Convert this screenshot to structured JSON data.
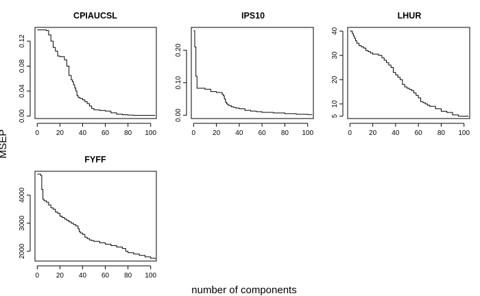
{
  "figure": {
    "ylabel": "MSEP",
    "xlabel": "number of components"
  },
  "chart_data": [
    {
      "type": "line",
      "title": "CPIAUCSL",
      "xlabel": "",
      "ylabel": "",
      "xlim": [
        -2,
        105
      ],
      "ylim": [
        -0.004,
        0.142
      ],
      "xticks": [
        "0",
        "20",
        "40",
        "60",
        "80",
        "100"
      ],
      "xtick_values": [
        0,
        20,
        40,
        60,
        80,
        100
      ],
      "yticks": [
        "0.00",
        "0.04",
        "0.08",
        "0.12"
      ],
      "ytick_values": [
        0,
        0.04,
        0.08,
        0.12
      ],
      "step": true,
      "x": [
        0,
        5,
        8,
        10,
        12,
        14,
        16,
        18,
        20,
        22,
        24,
        26,
        28,
        30,
        31,
        32,
        33,
        34,
        35,
        36,
        37,
        38,
        40,
        42,
        44,
        46,
        48,
        50,
        55,
        60,
        65,
        70,
        75,
        80,
        85,
        90,
        95,
        100,
        104
      ],
      "y": [
        0.138,
        0.138,
        0.137,
        0.13,
        0.12,
        0.11,
        0.104,
        0.096,
        0.095,
        0.095,
        0.09,
        0.08,
        0.065,
        0.058,
        0.055,
        0.05,
        0.045,
        0.04,
        0.033,
        0.03,
        0.029,
        0.028,
        0.026,
        0.023,
        0.02,
        0.016,
        0.012,
        0.01,
        0.009,
        0.008,
        0.005,
        0.003,
        0.002,
        0.0015,
        0.001,
        0.001,
        0.001,
        0.001,
        0.001
      ]
    },
    {
      "type": "line",
      "title": "IPS10",
      "xlabel": "",
      "ylabel": "",
      "xlim": [
        -2,
        105
      ],
      "ylim": [
        -0.01,
        0.27
      ],
      "xticks": [
        "0",
        "20",
        "40",
        "60",
        "80",
        "100"
      ],
      "xtick_values": [
        0,
        20,
        40,
        60,
        80,
        100
      ],
      "yticks": [
        "0.00",
        "0.10",
        "0.20"
      ],
      "ytick_values": [
        0,
        0.1,
        0.2
      ],
      "step": true,
      "x": [
        0,
        1,
        2,
        3,
        10,
        15,
        20,
        25,
        26,
        27,
        28,
        29,
        30,
        31,
        33,
        35,
        37,
        40,
        45,
        50,
        55,
        60,
        70,
        80,
        90,
        100,
        104
      ],
      "y": [
        0.26,
        0.21,
        0.12,
        0.083,
        0.08,
        0.073,
        0.07,
        0.065,
        0.06,
        0.05,
        0.04,
        0.035,
        0.032,
        0.03,
        0.026,
        0.024,
        0.022,
        0.02,
        0.015,
        0.013,
        0.011,
        0.009,
        0.007,
        0.005,
        0.003,
        0.002,
        0.002
      ]
    },
    {
      "type": "line",
      "title": "LHUR",
      "xlabel": "",
      "ylabel": "",
      "xlim": [
        -2,
        105
      ],
      "ylim": [
        4,
        41.5
      ],
      "xticks": [
        "0",
        "20",
        "40",
        "60",
        "80",
        "100"
      ],
      "xtick_values": [
        0,
        20,
        40,
        60,
        80,
        100
      ],
      "yticks": [
        "5",
        "10",
        "20",
        "30",
        "40"
      ],
      "ytick_values": [
        5,
        10,
        20,
        30,
        40
      ],
      "step": true,
      "x": [
        0,
        2,
        3,
        4,
        5,
        6,
        8,
        10,
        12,
        14,
        16,
        18,
        20,
        25,
        28,
        30,
        32,
        34,
        36,
        38,
        40,
        42,
        44,
        46,
        48,
        50,
        52,
        54,
        56,
        58,
        60,
        62,
        64,
        66,
        68,
        70,
        75,
        80,
        85,
        90,
        95,
        100,
        104
      ],
      "y": [
        40,
        39,
        38,
        37,
        36,
        35,
        34,
        33.5,
        33,
        32,
        31.5,
        31,
        30.5,
        30,
        29,
        28,
        27,
        26,
        25,
        23,
        22,
        21,
        20,
        18,
        17,
        16.5,
        16,
        15.5,
        14.5,
        13.5,
        12.5,
        11,
        10.5,
        10,
        9.5,
        9,
        8,
        7,
        6.5,
        5.5,
        5,
        5,
        5
      ]
    },
    {
      "type": "line",
      "title": "FYFF",
      "xlabel": "",
      "ylabel": "",
      "xlim": [
        -2,
        105
      ],
      "ylim": [
        1650,
        4850
      ],
      "xticks": [
        "0",
        "20",
        "40",
        "60",
        "80",
        "100"
      ],
      "xtick_values": [
        0,
        20,
        40,
        60,
        80,
        100
      ],
      "yticks": [
        "2000",
        "3000",
        "4000"
      ],
      "ytick_values": [
        2000,
        3000,
        4000
      ],
      "step": true,
      "x": [
        0,
        3,
        4,
        5,
        6,
        8,
        10,
        12,
        14,
        16,
        18,
        20,
        22,
        24,
        26,
        28,
        30,
        32,
        34,
        36,
        37,
        38,
        40,
        42,
        44,
        46,
        48,
        50,
        55,
        60,
        65,
        70,
        75,
        78,
        80,
        85,
        90,
        95,
        100,
        104
      ],
      "y": [
        4750,
        4700,
        4200,
        3850,
        3800,
        3750,
        3650,
        3550,
        3500,
        3400,
        3350,
        3250,
        3200,
        3150,
        3100,
        3050,
        3000,
        2950,
        2900,
        2800,
        2700,
        2650,
        2600,
        2500,
        2450,
        2400,
        2380,
        2350,
        2300,
        2250,
        2200,
        2150,
        2100,
        2000,
        1950,
        1900,
        1850,
        1800,
        1750,
        1720
      ]
    }
  ]
}
